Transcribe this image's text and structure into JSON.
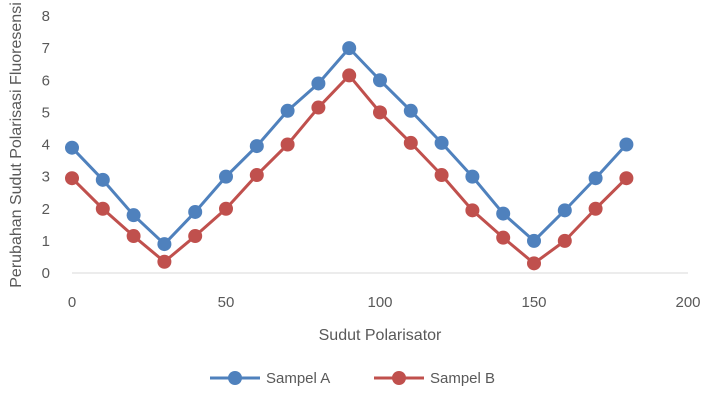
{
  "chart_data": {
    "type": "line",
    "xlabel": "Sudut Polarisator",
    "ylabel": "Perubahan Sudut Polarisasi Fluoresensi",
    "xlim": [
      0,
      200
    ],
    "ylim": [
      0,
      8
    ],
    "xticks": [
      0,
      50,
      100,
      150,
      200
    ],
    "yticks": [
      0,
      1,
      2,
      3,
      4,
      5,
      6,
      7,
      8
    ],
    "grid": false,
    "legend_position": "bottom",
    "x": [
      0,
      10,
      20,
      30,
      40,
      50,
      60,
      70,
      80,
      90,
      100,
      110,
      120,
      130,
      140,
      150,
      160,
      170,
      180
    ],
    "series": [
      {
        "name": "Sampel A",
        "color": "#4f81bd",
        "values": [
          3.9,
          2.9,
          1.8,
          0.9,
          1.9,
          3.0,
          3.95,
          5.05,
          5.9,
          7.0,
          6.0,
          5.05,
          4.05,
          3.0,
          1.85,
          1.0,
          1.95,
          2.95,
          4.0
        ]
      },
      {
        "name": "Sampel B",
        "color": "#c0504d",
        "values": [
          2.95,
          2.0,
          1.15,
          0.35,
          1.15,
          2.0,
          3.05,
          4.0,
          5.15,
          6.15,
          5.0,
          4.05,
          3.05,
          1.95,
          1.1,
          0.3,
          1.0,
          2.0,
          2.95
        ]
      }
    ]
  }
}
